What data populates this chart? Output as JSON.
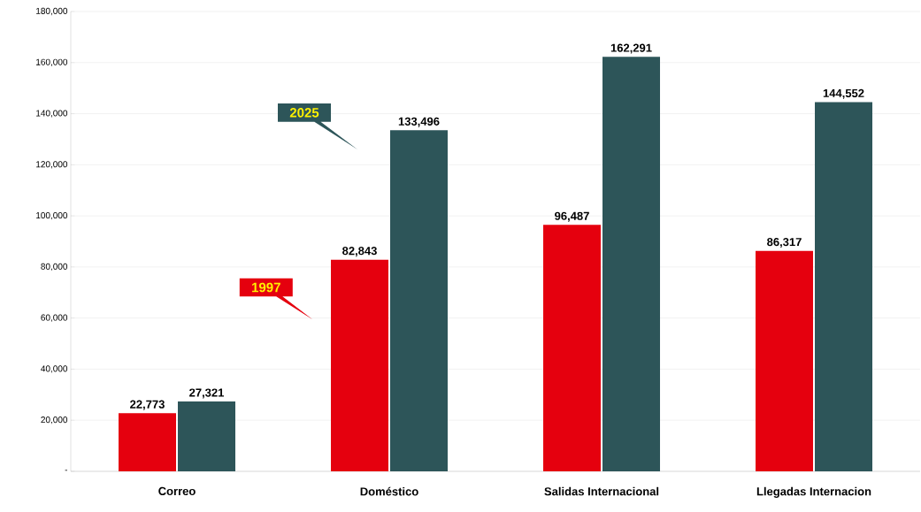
{
  "chart_data": {
    "type": "bar",
    "categories": [
      "Correo",
      "Doméstico",
      "Salidas Internacional",
      "Llegadas  Internacion"
    ],
    "series": [
      {
        "name": "1997",
        "color": "#e5000e",
        "values": [
          22773,
          82843,
          96487,
          86317
        ],
        "value_labels": [
          "22,773",
          "82,843",
          "96,487",
          "86,317"
        ]
      },
      {
        "name": "2025",
        "color": "#2d5559",
        "values": [
          27321,
          133496,
          162291,
          144552
        ],
        "value_labels": [
          "27,321",
          "133,496",
          "162,291",
          "144,552"
        ]
      }
    ],
    "ylim": [
      0,
      180000
    ],
    "yticks": [
      {
        "value": 0,
        "label": "-"
      },
      {
        "value": 20000,
        "label": "20,000"
      },
      {
        "value": 40000,
        "label": "40,000"
      },
      {
        "value": 60000,
        "label": "60,000"
      },
      {
        "value": 80000,
        "label": "80,000"
      },
      {
        "value": 100000,
        "label": "100,000"
      },
      {
        "value": 120000,
        "label": "120,000"
      },
      {
        "value": 140000,
        "label": "140,000"
      },
      {
        "value": 160000,
        "label": "160,000"
      },
      {
        "value": 180000,
        "label": "180,000"
      }
    ],
    "grid": "y"
  }
}
